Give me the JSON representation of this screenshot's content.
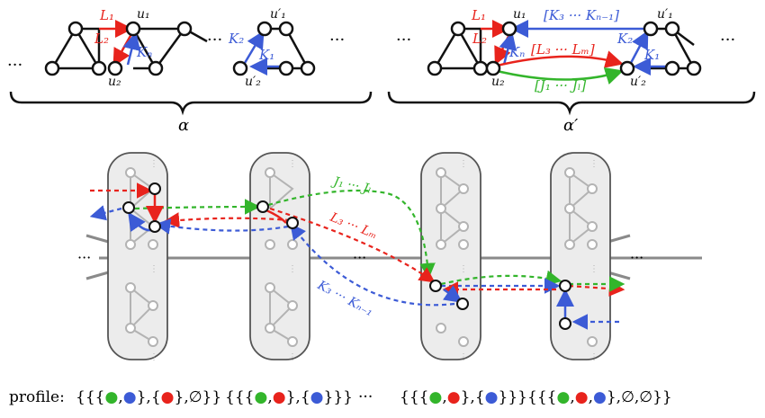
{
  "top": {
    "alpha": "α",
    "alpha_prime": "α′",
    "dots": "···",
    "left_labels": {
      "L1": "L₁",
      "L2": "L₂",
      "Kn": "Kₙ",
      "K2": "K₂",
      "K1": "K₁",
      "u1": "u₁",
      "u2": "u₂",
      "u1p": "u′₁",
      "u2p": "u′₂"
    },
    "right_labels": {
      "L1": "L₁",
      "L2": "L₂",
      "Kn": "Kₙ",
      "K2": "K₂",
      "K1": "K₁",
      "u1": "u₁",
      "u2": "u₂",
      "u1p": "u′₁",
      "u2p": "u′₂",
      "Kseq": "[K₃ ··· Kₙ₋₁]",
      "Lseq": "[L₃ ··· Lₘ]",
      "Jseq": "[J₁ ··· Jₗ]"
    }
  },
  "middle": {
    "J": "J₁ ··· Jₗ",
    "L": "L₃ ··· Lₘ",
    "K": "K₃ ··· Kₙ₋₁",
    "dots": "···"
  },
  "profile": {
    "label": "profile:",
    "groups": [
      "{{{●,●},{●},∅}}",
      "{{{●,●},{●}}}",
      "···",
      "{{{●,●},{●}}}",
      "{{{●,●,●},∅,∅}}"
    ]
  },
  "colors": {
    "red": "#e8231c",
    "blue": "#3c5bd6",
    "green": "#33b52b",
    "gray": "#b3b3b3",
    "capsule": "#ececec"
  }
}
